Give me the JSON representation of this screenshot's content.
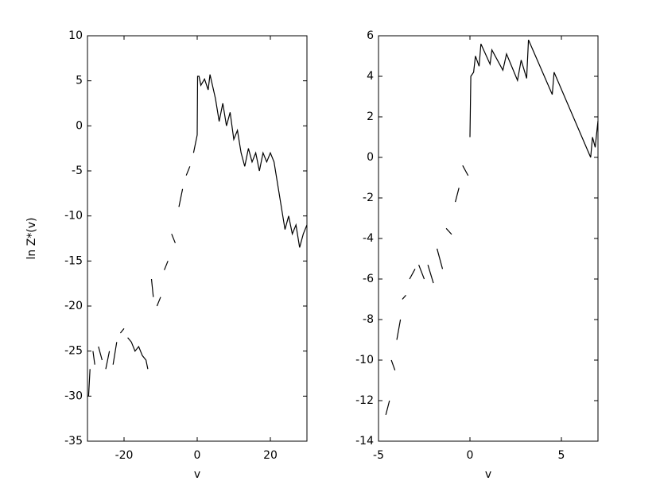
{
  "chart_data": [
    {
      "type": "line",
      "xlabel": "v",
      "ylabel": "ln Z*(v)",
      "color": "#000000",
      "xlim": [
        -30,
        30
      ],
      "ylim": [
        -35,
        10
      ],
      "xticks": [
        -20,
        0,
        20
      ],
      "yticks": [
        -35,
        -30,
        -25,
        -20,
        -15,
        -10,
        -5,
        0,
        5,
        10
      ],
      "x": [
        -29.7,
        -29.3,
        null,
        -28.5,
        -28,
        null,
        -27,
        -26,
        null,
        -25,
        -24,
        null,
        -23,
        -22,
        null,
        -21,
        -20,
        null,
        -19,
        -18,
        -17,
        -16,
        -15,
        -14,
        -13.5,
        null,
        -12.5,
        -12,
        null,
        -11,
        -10,
        null,
        -9,
        -8,
        null,
        -7,
        -6,
        null,
        -5,
        -4,
        null,
        -3,
        -2,
        null,
        -1,
        0,
        0.1,
        0.5,
        1,
        2,
        3,
        3.5,
        5,
        6,
        7,
        8,
        9,
        10,
        11,
        12,
        13,
        14,
        15,
        16,
        17,
        18,
        19,
        20,
        21,
        24,
        25,
        26,
        27,
        28,
        29,
        30
      ],
      "values": [
        -30,
        -27,
        null,
        -25,
        -26.5,
        null,
        -24.5,
        -26,
        null,
        -27,
        -25,
        null,
        -26.5,
        -24,
        null,
        -23,
        -22.5,
        null,
        -23.5,
        -24,
        -25,
        -24.5,
        -25.5,
        -26,
        -27,
        null,
        -17,
        -19,
        null,
        -20,
        -19,
        null,
        -16,
        -15,
        null,
        -12,
        -13,
        null,
        -9,
        -7,
        null,
        -5.5,
        -4.5,
        null,
        -3,
        -1,
        5.5,
        5.5,
        4.5,
        5.2,
        4,
        5.7,
        3,
        0.5,
        2.5,
        0,
        1.5,
        -1.5,
        -0.5,
        -3,
        -4.5,
        -2.5,
        -4,
        -3,
        -5,
        -3,
        -4,
        -3,
        -4,
        -11.5,
        -10,
        -12,
        -11,
        -13.5,
        -12,
        -11
      ]
    },
    {
      "type": "line",
      "xlabel": "v",
      "color": "#000000",
      "xlim": [
        -5,
        7
      ],
      "ylim": [
        -14,
        6
      ],
      "xticks": [
        -5,
        0,
        5
      ],
      "yticks": [
        -14,
        -12,
        -10,
        -8,
        -6,
        -4,
        -2,
        0,
        2,
        4,
        6
      ],
      "x": [
        -4.6,
        -4.4,
        null,
        -4.3,
        -4.1,
        null,
        -4,
        -3.8,
        null,
        -3.7,
        -3.5,
        null,
        -3.3,
        -3,
        null,
        -2.8,
        -2.5,
        null,
        -2.3,
        -2,
        null,
        -1.8,
        -1.5,
        null,
        -1.3,
        -1,
        null,
        -0.8,
        -0.6,
        null,
        -0.4,
        -0.1,
        null,
        0,
        0.05,
        0.2,
        0.3,
        0.5,
        0.6,
        1.1,
        1.2,
        1.8,
        2,
        2.6,
        2.8,
        3.1,
        3.2,
        4.5,
        4.6,
        6.6,
        6.7,
        6.85,
        7
      ],
      "values": [
        -12.7,
        -12,
        null,
        -10,
        -10.5,
        null,
        -9,
        -8,
        null,
        -7,
        -6.8,
        null,
        -6,
        -5.5,
        null,
        -5.3,
        -6,
        null,
        -5.3,
        -6.2,
        null,
        -4.5,
        -5.5,
        null,
        -3.5,
        -3.8,
        null,
        -2.2,
        -1.5,
        null,
        -0.4,
        -0.9,
        null,
        1,
        4,
        4.2,
        5,
        4.5,
        5.6,
        4.6,
        5.3,
        4.3,
        5.1,
        3.8,
        4.8,
        3.9,
        5.8,
        3.1,
        4.2,
        0,
        1,
        0.5,
        1.8
      ]
    }
  ]
}
